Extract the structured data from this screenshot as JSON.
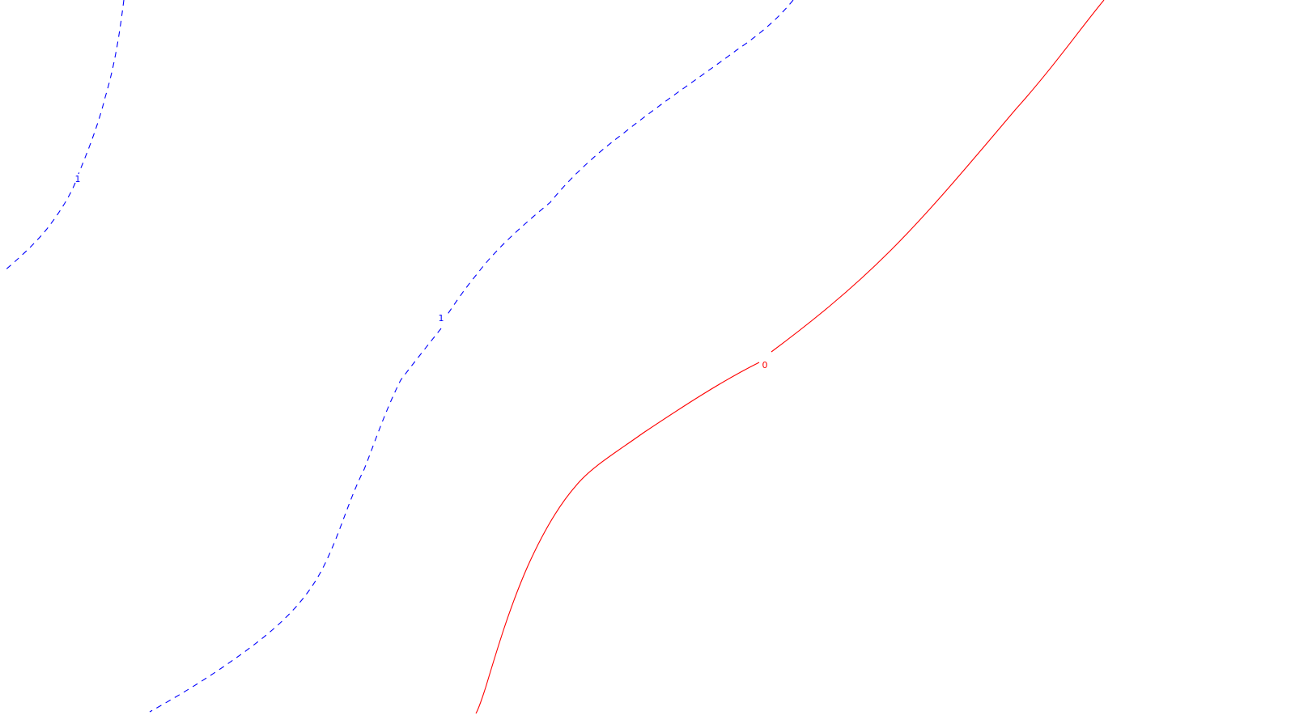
{
  "map": {
    "contours": [
      {
        "level_label": "1",
        "color": "#0000ff",
        "style": "dashed"
      },
      {
        "level_label": "1",
        "color": "#0000ff",
        "style": "dashed"
      },
      {
        "level_label": "0",
        "color": "#ff0000",
        "style": "solid"
      }
    ]
  }
}
